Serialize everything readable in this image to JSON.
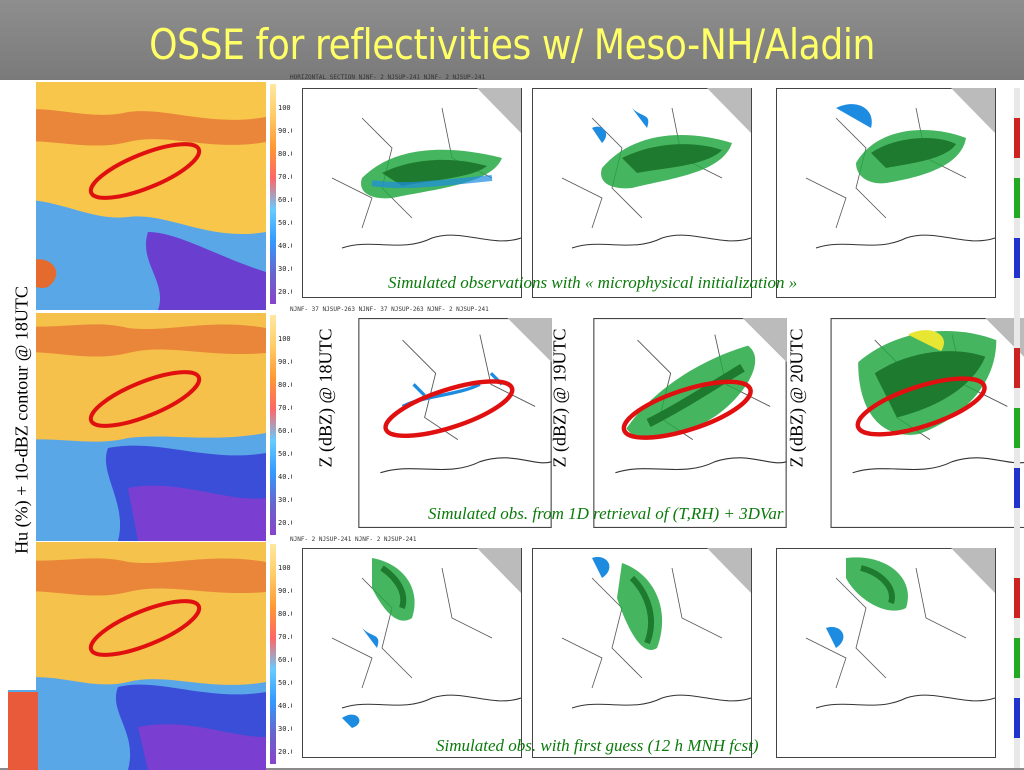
{
  "title": "OSSE for reflectivities w/ Meso-NH/Aladin",
  "left_axis_label": "Hu (%) + 10-dBZ contour @ 18UTC",
  "column_labels": [
    "Z (dBZ) @ 18UTC",
    "Z (dBZ) @ 19UTC",
    "Z (dBZ) @ 20UTC"
  ],
  "captions": {
    "row1": "Simulated observations with « microphysical initialization »",
    "row2": "Simulated obs. from 1D retrieval of (T,RH) + 3DVar",
    "row3": "Simulated obs. with first guess (12 h MNH fcst)"
  },
  "hu_scale_ticks": [
    "100.0",
    "90.00",
    "80.00",
    "70.00",
    "60.00",
    "50.00",
    "40.00",
    "30.00",
    "20.00"
  ],
  "panel_headers": {
    "row1": "HORIZONTAL SECTION NJNF- 2 NJSUP-241 NJNF- 2 NJSUP-241",
    "row2": "NJNF- 37 NJSUP-263 NJNF- 37 NJSUP-263 NJNF- 2 NJSUP-241",
    "row3": "NJNF- 2 NJSUP-241 NJNF- 2 NJSUP-241"
  },
  "colors": {
    "title": "#ffff66",
    "caption": "#0a7a0a",
    "ellipse": "#e01010",
    "slide_bg": "#8a8a8a"
  }
}
